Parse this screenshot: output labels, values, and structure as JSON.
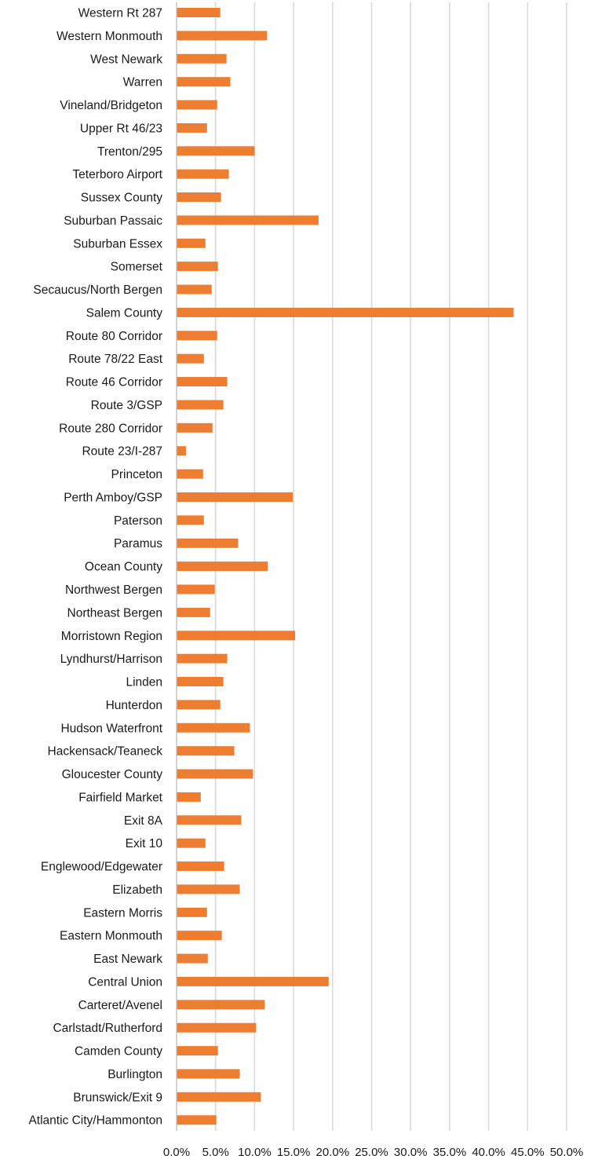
{
  "chart_data": {
    "type": "bar",
    "orientation": "horizontal",
    "categories": [
      "Western Rt 287",
      "Western Monmouth",
      "West Newark",
      "Warren",
      "Vineland/Bridgeton",
      "Upper Rt 46/23",
      "Trenton/295",
      "Teterboro Airport",
      "Sussex County",
      "Suburban Passaic",
      "Suburban Essex",
      "Somerset",
      "Secaucus/North Bergen",
      "Salem County",
      "Route 80 Corridor",
      "Route 78/22 East",
      "Route 46 Corridor",
      "Route 3/GSP",
      "Route 280 Corridor",
      "Route 23/I-287",
      "Princeton",
      "Perth Amboy/GSP",
      "Paterson",
      "Paramus",
      "Ocean County",
      "Northwest Bergen",
      "Northeast Bergen",
      "Morristown Region",
      "Lyndhurst/Harrison",
      "Linden",
      "Hunterdon",
      "Hudson Waterfront",
      "Hackensack/Teaneck",
      "Gloucester County",
      "Fairfield Market",
      "Exit 8A",
      "Exit 10",
      "Englewood/Edgewater",
      "Elizabeth",
      "Eastern Morris",
      "Eastern Monmouth",
      "East Newark",
      "Central Union",
      "Carteret/Avenel",
      "Carlstadt/Rutherford",
      "Camden County",
      "Burlington",
      "Brunswick/Exit 9",
      "Atlantic City/Hammonton"
    ],
    "values": [
      5.6,
      11.6,
      6.4,
      6.9,
      5.2,
      3.9,
      10.0,
      6.7,
      5.7,
      18.2,
      3.7,
      5.3,
      4.5,
      43.2,
      5.2,
      3.5,
      6.5,
      6.0,
      4.6,
      1.2,
      3.4,
      14.9,
      3.5,
      7.9,
      11.7,
      4.9,
      4.3,
      15.2,
      6.5,
      6.0,
      5.6,
      9.4,
      7.4,
      9.8,
      3.1,
      8.3,
      3.7,
      6.1,
      8.1,
      3.9,
      5.8,
      4.0,
      19.5,
      11.3,
      10.2,
      5.3,
      8.1,
      10.8,
      5.1
    ],
    "x_ticks": [
      "0.0%",
      "5.0%",
      "10.0%",
      "15.0%",
      "20.0%",
      "25.0%",
      "30.0%",
      "35.0%",
      "40.0%",
      "45.0%",
      "50.0%"
    ],
    "xlim": [
      0,
      50
    ],
    "grid": "vertical",
    "legend": "none",
    "colors": {
      "bar": "#ed7d31",
      "grid": "#d9d9d9",
      "text": "#1a1a1a"
    }
  }
}
